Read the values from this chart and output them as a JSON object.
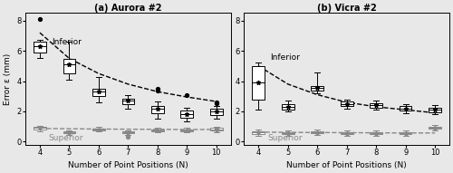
{
  "title_a": "(a) Aurora #2",
  "title_b": "(b) Vicra #2",
  "xlabel": "Number of Point Positions (N)",
  "ylabel": "Error ε (mm)",
  "x": [
    4,
    5,
    6,
    7,
    8,
    9,
    10
  ],
  "ylim": [
    -0.2,
    8.5
  ],
  "yticks": [
    0,
    2,
    4,
    6,
    8
  ],
  "aurora_inferior_median": [
    6.3,
    5.1,
    3.3,
    2.7,
    2.2,
    1.8,
    2.0
  ],
  "aurora_inferior_q1": [
    5.9,
    4.5,
    3.0,
    2.5,
    1.85,
    1.6,
    1.75
  ],
  "aurora_inferior_q3": [
    6.6,
    5.45,
    3.5,
    2.85,
    2.35,
    2.05,
    2.18
  ],
  "aurora_inferior_whisk_low": [
    5.55,
    4.1,
    2.6,
    2.2,
    1.5,
    1.35,
    1.5
  ],
  "aurora_inferior_whisk_high": [
    6.75,
    6.6,
    4.3,
    3.1,
    2.65,
    2.25,
    2.35
  ],
  "aurora_inferior_outliers_x": [
    4,
    8,
    8,
    9,
    10,
    10
  ],
  "aurora_inferior_outliers_y": [
    8.1,
    3.4,
    3.5,
    3.05,
    2.6,
    2.55
  ],
  "aurora_superior_median": [
    0.9,
    0.62,
    0.8,
    0.62,
    0.76,
    0.76,
    0.82
  ],
  "aurora_superior_q1": [
    0.82,
    0.55,
    0.74,
    0.56,
    0.7,
    0.7,
    0.74
  ],
  "aurora_superior_q3": [
    0.97,
    0.67,
    0.88,
    0.68,
    0.82,
    0.82,
    0.9
  ],
  "aurora_superior_whisk_low": [
    0.7,
    0.46,
    0.65,
    0.46,
    0.61,
    0.61,
    0.63
  ],
  "aurora_superior_whisk_high": [
    1.05,
    0.74,
    0.95,
    0.74,
    0.9,
    0.9,
    0.97
  ],
  "aurora_superior_outliers_x": [
    7
  ],
  "aurora_superior_outliers_y": [
    0.3
  ],
  "aurora_inferior_fit_y": [
    7.2,
    5.5,
    4.5,
    3.8,
    3.3,
    2.95,
    2.65
  ],
  "aurora_superior_fit_y": [
    0.87,
    0.85,
    0.83,
    0.82,
    0.81,
    0.8,
    0.8
  ],
  "vicra_inferior_median": [
    3.9,
    2.3,
    3.55,
    2.5,
    2.4,
    2.2,
    2.1
  ],
  "vicra_inferior_q1": [
    2.8,
    2.1,
    3.4,
    2.35,
    2.25,
    2.05,
    1.95
  ],
  "vicra_inferior_q3": [
    5.0,
    2.5,
    3.7,
    2.65,
    2.55,
    2.35,
    2.25
  ],
  "vicra_inferior_whisk_low": [
    2.1,
    2.0,
    3.2,
    2.15,
    2.1,
    1.9,
    1.8
  ],
  "vicra_inferior_whisk_high": [
    5.2,
    2.7,
    4.55,
    2.8,
    2.7,
    2.5,
    2.4
  ],
  "vicra_inferior_outliers_x": [],
  "vicra_inferior_outliers_y": [],
  "vicra_superior_median": [
    0.6,
    0.55,
    0.6,
    0.55,
    0.55,
    0.55,
    0.9
  ],
  "vicra_superior_q1": [
    0.5,
    0.47,
    0.53,
    0.48,
    0.48,
    0.48,
    0.83
  ],
  "vicra_superior_q3": [
    0.69,
    0.63,
    0.67,
    0.62,
    0.62,
    0.62,
    0.98
  ],
  "vicra_superior_whisk_low": [
    0.37,
    0.37,
    0.43,
    0.38,
    0.38,
    0.38,
    0.72
  ],
  "vicra_superior_whisk_high": [
    0.79,
    0.73,
    0.77,
    0.72,
    0.72,
    0.72,
    1.08
  ],
  "vicra_superior_outliers_x": [],
  "vicra_superior_outliers_y": [],
  "vicra_inferior_fit_y": [
    5.0,
    3.8,
    3.1,
    2.6,
    2.3,
    2.1,
    1.9
  ],
  "vicra_superior_fit_y": [
    0.63,
    0.61,
    0.6,
    0.59,
    0.58,
    0.57,
    0.57
  ],
  "inferior_label": "Inferior",
  "superior_label": "Superior",
  "inferior_color": "#000000",
  "superior_color": "#888888",
  "bg_color": "#e8e8e8",
  "figsize": [
    5.0,
    1.91
  ],
  "dpi": 100
}
